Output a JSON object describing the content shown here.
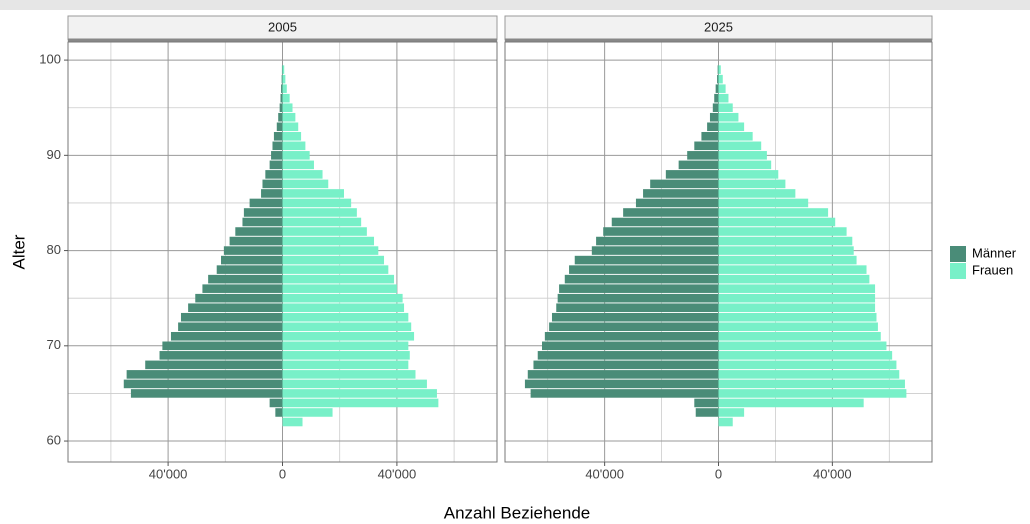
{
  "chart_data": {
    "type": "pyramid",
    "x_label": "Anzahl Beziehende",
    "y_label": "Alter",
    "y": [
      62,
      63,
      64,
      65,
      66,
      67,
      68,
      69,
      70,
      71,
      72,
      73,
      74,
      75,
      76,
      77,
      78,
      79,
      80,
      81,
      82,
      83,
      84,
      85,
      86,
      87,
      88,
      89,
      90,
      91,
      92,
      93,
      94,
      95,
      96,
      97,
      98,
      99
    ],
    "ylim": [
      57.8,
      101.9
    ],
    "yticks": [
      60,
      70,
      80,
      90,
      100
    ],
    "y_minor_ticks": [
      65,
      75,
      85,
      95
    ],
    "xlim": [
      -75000,
      75000
    ],
    "xticks": [
      {
        "value": -40000,
        "label": "40'000"
      },
      0,
      {
        "value": 40000,
        "label": "40'000"
      }
    ],
    "x_minor_ticks": [
      -60000,
      -20000,
      20000,
      60000
    ],
    "grid": true,
    "legend": [
      {
        "name": "Männer",
        "color": "#4a8c78"
      },
      {
        "name": "Frauen",
        "color": "#78f0c8"
      }
    ],
    "panels": [
      {
        "title": "2005",
        "series": [
          {
            "values": [
              0,
              -2500,
              -4500,
              -53000,
              -55500,
              -54500,
              -48000,
              -43000,
              -42000,
              -39000,
              -36500,
              -35500,
              -33000,
              -30500,
              -28000,
              -26000,
              -23000,
              -21500,
              -20500,
              -18500,
              -16500,
              -14000,
              -13500,
              -11500,
              -7500,
              -7000,
              -6000,
              -4500,
              -4000,
              -3500,
              -3000,
              -2000,
              -1500,
              -1000,
              -700,
              -500,
              -300,
              -200
            ]
          },
          {
            "values": [
              7000,
              17500,
              54500,
              54000,
              50500,
              46500,
              44000,
              44500,
              44000,
              46000,
              45000,
              44000,
              42500,
              42000,
              40000,
              39000,
              37000,
              35500,
              33500,
              32000,
              29500,
              27500,
              26000,
              24000,
              21500,
              16000,
              14000,
              11000,
              9500,
              8000,
              6500,
              5500,
              4500,
              3500,
              2500,
              1500,
              1000,
              600
            ]
          }
        ]
      },
      {
        "title": "2025",
        "series": [
          {
            "values": [
              0,
              -8000,
              -8500,
              -66000,
              -68000,
              -67000,
              -65000,
              -63500,
              -62000,
              -61000,
              -59500,
              -58500,
              -57000,
              -56500,
              -56000,
              -54000,
              -52500,
              -50500,
              -44500,
              -43000,
              -40500,
              -37500,
              -33500,
              -29000,
              -26500,
              -24000,
              -18500,
              -14000,
              -11000,
              -8500,
              -6000,
              -4000,
              -3000,
              -2000,
              -1500,
              -1000,
              -500,
              -300
            ]
          },
          {
            "values": [
              5000,
              9000,
              51000,
              66000,
              65500,
              63500,
              62500,
              61000,
              59000,
              57000,
              56000,
              55500,
              55000,
              55000,
              55000,
              53000,
              52000,
              48500,
              47500,
              47000,
              45000,
              41000,
              38500,
              31500,
              27000,
              23500,
              21000,
              18500,
              17000,
              15000,
              12000,
              9000,
              7000,
              5000,
              3500,
              2500,
              1500,
              800
            ]
          }
        ]
      }
    ]
  }
}
